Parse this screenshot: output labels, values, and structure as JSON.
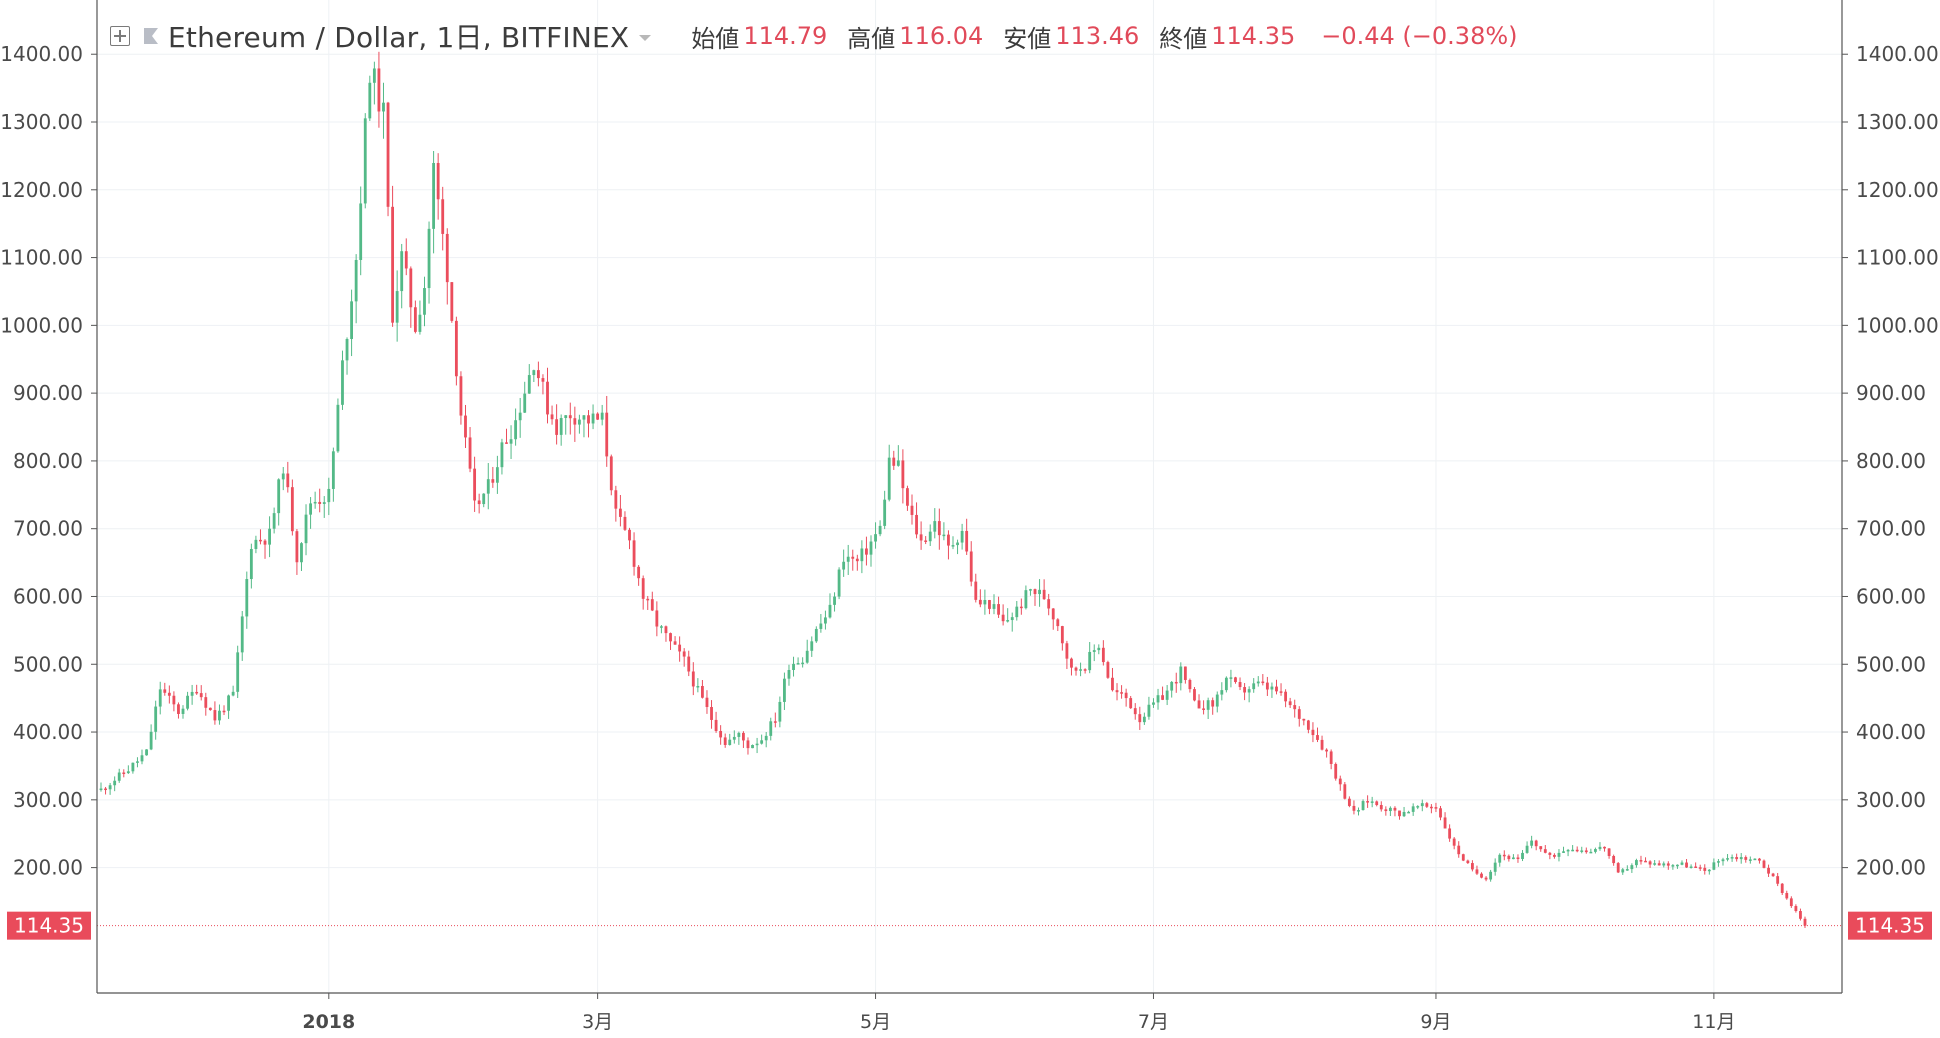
{
  "header": {
    "title": "Ethereum / Dollar, 1日, BITFINEX",
    "open_label": "始値",
    "open_value": "114.79",
    "high_label": "高値",
    "high_value": "116.04",
    "low_label": "安値",
    "low_value": "113.46",
    "close_label": "終値",
    "close_value": "114.35",
    "change": "−0.44 (−0.38%)"
  },
  "colors": {
    "up": "#53b987",
    "down": "#eb4d5c",
    "grid": "#eef1f4",
    "axis": "#555555",
    "price_tag": "#e94b5b"
  },
  "chart_data": {
    "type": "candlestick",
    "symbol": "Ethereum / Dollar",
    "interval": "1日",
    "exchange": "BITFINEX",
    "y_tick_labels": [
      "1400.00",
      "1300.00",
      "1200.00",
      "1100.00",
      "1000.00",
      "900.00",
      "800.00",
      "700.00",
      "600.00",
      "500.00",
      "400.00",
      "300.00",
      "200.00"
    ],
    "ylim": [
      15,
      1480
    ],
    "last_price_label": "114.35",
    "x_ticks": [
      {
        "label": "2018",
        "date": "2018-01-01",
        "bold": true
      },
      {
        "label": "3月",
        "date": "2018-03-01",
        "bold": false
      },
      {
        "label": "5月",
        "date": "2018-05-01",
        "bold": false
      },
      {
        "label": "7月",
        "date": "2018-07-01",
        "bold": false
      },
      {
        "label": "9月",
        "date": "2018-09-01",
        "bold": false
      },
      {
        "label": "11月",
        "date": "2018-11-01",
        "bold": false
      }
    ],
    "start_date": "2017-11-12",
    "end_date": "2018-11-21",
    "price_path": [
      [
        "2017-11-12",
        315
      ],
      [
        "2017-11-18",
        345
      ],
      [
        "2017-11-22",
        370
      ],
      [
        "2017-11-25",
        465
      ],
      [
        "2017-11-29",
        430
      ],
      [
        "2017-12-03",
        465
      ],
      [
        "2017-12-07",
        420
      ],
      [
        "2017-12-11",
        455
      ],
      [
        "2017-12-15",
        680
      ],
      [
        "2017-12-19",
        690
      ],
      [
        "2017-12-22",
        795
      ],
      [
        "2017-12-25",
        660
      ],
      [
        "2017-12-28",
        740
      ],
      [
        "2018-01-01",
        750
      ],
      [
        "2018-01-04",
        940
      ],
      [
        "2018-01-07",
        1100
      ],
      [
        "2018-01-10",
        1380
      ],
      [
        "2018-01-13",
        1310
      ],
      [
        "2018-01-15",
        1020
      ],
      [
        "2018-01-17",
        1100
      ],
      [
        "2018-01-20",
        1000
      ],
      [
        "2018-01-22",
        1060
      ],
      [
        "2018-01-24",
        1230
      ],
      [
        "2018-01-27",
        1080
      ],
      [
        "2018-01-30",
        870
      ],
      [
        "2018-02-02",
        730
      ],
      [
        "2018-02-05",
        760
      ],
      [
        "2018-02-08",
        820
      ],
      [
        "2018-02-11",
        860
      ],
      [
        "2018-02-15",
        950
      ],
      [
        "2018-02-18",
        880
      ],
      [
        "2018-02-20",
        850
      ],
      [
        "2018-02-23",
        870
      ],
      [
        "2018-02-27",
        860
      ],
      [
        "2018-03-02",
        860
      ],
      [
        "2018-03-05",
        720
      ],
      [
        "2018-03-08",
        680
      ],
      [
        "2018-03-11",
        600
      ],
      [
        "2018-03-14",
        560
      ],
      [
        "2018-03-17",
        530
      ],
      [
        "2018-03-20",
        505
      ],
      [
        "2018-03-23",
        460
      ],
      [
        "2018-03-26",
        420
      ],
      [
        "2018-03-29",
        385
      ],
      [
        "2018-04-01",
        395
      ],
      [
        "2018-04-03",
        380
      ],
      [
        "2018-04-06",
        390
      ],
      [
        "2018-04-09",
        420
      ],
      [
        "2018-04-12",
        500
      ],
      [
        "2018-04-15",
        510
      ],
      [
        "2018-04-18",
        550
      ],
      [
        "2018-04-21",
        580
      ],
      [
        "2018-04-24",
        660
      ],
      [
        "2018-04-27",
        650
      ],
      [
        "2018-04-30",
        680
      ],
      [
        "2018-05-02",
        700
      ],
      [
        "2018-05-04",
        800
      ],
      [
        "2018-05-06",
        790
      ],
      [
        "2018-05-08",
        730
      ],
      [
        "2018-05-11",
        680
      ],
      [
        "2018-05-14",
        710
      ],
      [
        "2018-05-17",
        670
      ],
      [
        "2018-05-20",
        700
      ],
      [
        "2018-05-23",
        590
      ],
      [
        "2018-05-26",
        590
      ],
      [
        "2018-05-29",
        560
      ],
      [
        "2018-06-01",
        580
      ],
      [
        "2018-06-04",
        610
      ],
      [
        "2018-06-07",
        600
      ],
      [
        "2018-06-10",
        560
      ],
      [
        "2018-06-13",
        490
      ],
      [
        "2018-06-16",
        500
      ],
      [
        "2018-06-19",
        530
      ],
      [
        "2018-06-22",
        460
      ],
      [
        "2018-06-25",
        450
      ],
      [
        "2018-06-28",
        420
      ],
      [
        "2018-07-01",
        440
      ],
      [
        "2018-07-04",
        460
      ],
      [
        "2018-07-07",
        490
      ],
      [
        "2018-07-10",
        440
      ],
      [
        "2018-07-14",
        440
      ],
      [
        "2018-07-17",
        480
      ],
      [
        "2018-07-20",
        460
      ],
      [
        "2018-07-24",
        470
      ],
      [
        "2018-07-28",
        460
      ],
      [
        "2018-08-01",
        430
      ],
      [
        "2018-08-04",
        410
      ],
      [
        "2018-08-08",
        370
      ],
      [
        "2018-08-11",
        320
      ],
      [
        "2018-08-14",
        280
      ],
      [
        "2018-08-17",
        300
      ],
      [
        "2018-08-20",
        290
      ],
      [
        "2018-08-24",
        280
      ],
      [
        "2018-08-28",
        290
      ],
      [
        "2018-09-01",
        290
      ],
      [
        "2018-09-05",
        230
      ],
      [
        "2018-09-09",
        195
      ],
      [
        "2018-09-12",
        185
      ],
      [
        "2018-09-15",
        220
      ],
      [
        "2018-09-19",
        210
      ],
      [
        "2018-09-22",
        240
      ],
      [
        "2018-09-26",
        215
      ],
      [
        "2018-09-30",
        230
      ],
      [
        "2018-10-04",
        225
      ],
      [
        "2018-10-08",
        230
      ],
      [
        "2018-10-11",
        190
      ],
      [
        "2018-10-15",
        210
      ],
      [
        "2018-10-20",
        205
      ],
      [
        "2018-10-25",
        205
      ],
      [
        "2018-10-30",
        195
      ],
      [
        "2018-11-03",
        215
      ],
      [
        "2018-11-07",
        215
      ],
      [
        "2018-11-11",
        210
      ],
      [
        "2018-11-14",
        185
      ],
      [
        "2018-11-16",
        165
      ],
      [
        "2018-11-19",
        135
      ],
      [
        "2018-11-21",
        114.35
      ]
    ]
  }
}
